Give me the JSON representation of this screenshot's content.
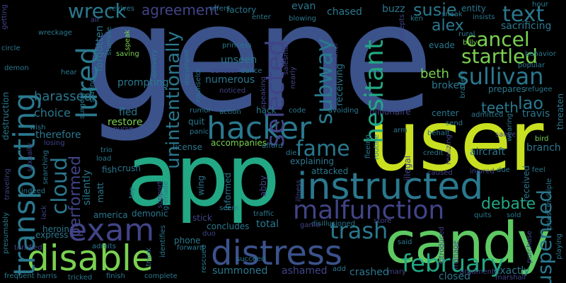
{
  "words": [
    {
      "text": "gene",
      "color": "#3b528b"
    },
    {
      "text": "user",
      "color": "#c8e020"
    },
    {
      "text": "app",
      "color": "#22a884"
    },
    {
      "text": "candy",
      "color": "#5ec962"
    },
    {
      "text": "instructed",
      "color": "#2a788e"
    },
    {
      "text": "distress",
      "color": "#3b528b"
    },
    {
      "text": "disable",
      "color": "#7ad151"
    },
    {
      "text": "malfunction",
      "color": "#414487"
    },
    {
      "text": "hacker",
      "color": "#2a788e"
    },
    {
      "text": "exam",
      "color": "#414487"
    },
    {
      "text": "transporting",
      "color": "#2a788e"
    },
    {
      "text": "lured",
      "color": "#2a788e"
    },
    {
      "text": "selected",
      "color": "#414487"
    },
    {
      "text": "hesitant",
      "color": "#22a884"
    },
    {
      "text": "subway",
      "color": "#2a788e"
    },
    {
      "text": "cancel",
      "color": "#7ad151"
    },
    {
      "text": "startled",
      "color": "#7ad151"
    },
    {
      "text": "sullivan",
      "color": "#2a788e"
    },
    {
      "text": "text",
      "color": "#2a788e"
    },
    {
      "text": "alex",
      "color": "#2a788e"
    },
    {
      "text": "susie",
      "color": "#2a788e"
    },
    {
      "text": "wreck",
      "color": "#2a788e"
    },
    {
      "text": "agreement",
      "color": "#414487"
    },
    {
      "text": "fame",
      "color": "#2a788e"
    },
    {
      "text": "trash",
      "color": "#2a788e"
    },
    {
      "text": "february",
      "color": "#22a884"
    },
    {
      "text": "suspended",
      "color": "#2a788e"
    },
    {
      "text": "cloud",
      "color": "#2a788e"
    },
    {
      "text": "performed",
      "color": "#414487"
    },
    {
      "text": "unintentionally",
      "color": "#2a788e"
    },
    {
      "text": "debate",
      "color": "#22a884"
    },
    {
      "text": "lao",
      "color": "#2a788e"
    },
    {
      "text": "teeth",
      "color": "#2a788e"
    },
    {
      "text": "beth",
      "color": "#7ad151"
    },
    {
      "text": "broken",
      "color": "#2a788e"
    },
    {
      "text": "harassed",
      "color": "#2a788e"
    },
    {
      "text": "choice",
      "color": "#2a788e"
    },
    {
      "text": "therefore",
      "color": "#2a788e"
    },
    {
      "text": "restore",
      "color": "#7ad151"
    },
    {
      "text": "fled",
      "color": "#2a788e"
    },
    {
      "text": "prompting",
      "color": "#2a788e"
    },
    {
      "text": "numerous",
      "color": "#2a788e"
    },
    {
      "text": "unseen",
      "color": "#2a788e"
    },
    {
      "text": "summoned",
      "color": "#2a788e"
    },
    {
      "text": "ashamed",
      "color": "#414487"
    },
    {
      "text": "total",
      "color": "#2a788e"
    },
    {
      "text": "crashed",
      "color": "#2a788e"
    },
    {
      "text": "closed",
      "color": "#2a788e"
    },
    {
      "text": "exactly",
      "color": "#2a788e"
    },
    {
      "text": "aircraft",
      "color": "#2a788e"
    },
    {
      "text": "branch",
      "color": "#2a788e"
    },
    {
      "text": "travis",
      "color": "#2a788e"
    },
    {
      "text": "threaten",
      "color": "#2a788e"
    },
    {
      "text": "sacrificing",
      "color": "#2a788e"
    },
    {
      "text": "evan",
      "color": "#2a788e"
    },
    {
      "text": "chased",
      "color": "#2a788e"
    },
    {
      "text": "buzz",
      "color": "#2a788e"
    },
    {
      "text": "receiving",
      "color": "#2a788e"
    },
    {
      "text": "hack",
      "color": "#2a788e"
    },
    {
      "text": "quit",
      "color": "#2a788e"
    },
    {
      "text": "license",
      "color": "#2a788e"
    },
    {
      "text": "accompanies",
      "color": "#7ad151"
    },
    {
      "text": "explaining",
      "color": "#2a788e"
    },
    {
      "text": "attacked",
      "color": "#2a788e"
    },
    {
      "text": "crush",
      "color": "#2a788e"
    },
    {
      "text": "fish",
      "color": "#2a788e"
    },
    {
      "text": "silently",
      "color": "#2a788e"
    },
    {
      "text": "matt",
      "color": "#2a788e"
    },
    {
      "text": "america",
      "color": "#2a788e"
    },
    {
      "text": "demonic",
      "color": "#2a788e"
    },
    {
      "text": "heroin",
      "color": "#2a788e"
    },
    {
      "text": "express",
      "color": "#2a788e"
    },
    {
      "text": "phone",
      "color": "#2a788e"
    },
    {
      "text": "concludes",
      "color": "#2a788e"
    },
    {
      "text": "informed",
      "color": "#2a788e"
    },
    {
      "text": "abby",
      "color": "#414487"
    },
    {
      "text": "stick",
      "color": "#414487"
    },
    {
      "text": "wing",
      "color": "#2a788e"
    },
    {
      "text": "factory",
      "color": "#2a788e"
    },
    {
      "text": "forgotten",
      "color": "#2a788e"
    },
    {
      "text": "billionaire",
      "color": "#414487"
    },
    {
      "text": "center",
      "color": "#2a788e"
    },
    {
      "text": "evade",
      "color": "#2a788e"
    },
    {
      "text": "prepares",
      "color": "#2a788e"
    },
    {
      "text": "received",
      "color": "#2a788e"
    },
    {
      "text": "illegal",
      "color": "#414487"
    },
    {
      "text": "entity",
      "color": "#2a788e"
    },
    {
      "text": "revives",
      "color": "#2a788e"
    },
    {
      "text": "refers",
      "color": "#2a788e"
    },
    {
      "text": "blowing",
      "color": "#2a788e"
    },
    {
      "text": "ken",
      "color": "#2a788e"
    },
    {
      "text": "sneak",
      "color": "#2a788e"
    },
    {
      "text": "insists",
      "color": "#2a788e"
    },
    {
      "text": "rural",
      "color": "#2a788e"
    },
    {
      "text": "billy",
      "color": "#7ad151"
    },
    {
      "text": "hour",
      "color": "#2a788e"
    },
    {
      "text": "behavior",
      "color": "#2a788e"
    },
    {
      "text": "popular",
      "color": "#2a788e"
    },
    {
      "text": "refugee",
      "color": "#2a788e"
    },
    {
      "text": "admitted",
      "color": "#2a788e"
    },
    {
      "text": "wearing",
      "color": "#2a788e"
    },
    {
      "text": "bird",
      "color": "#7ad151"
    },
    {
      "text": "feel",
      "color": "#2a788e"
    },
    {
      "text": "due",
      "color": "#2a788e"
    },
    {
      "text": "injured",
      "color": "#414487"
    },
    {
      "text": "behalf",
      "color": "#2a788e"
    },
    {
      "text": "send",
      "color": "#2a788e"
    },
    {
      "text": "credit",
      "color": "#2a788e"
    },
    {
      "text": "caused",
      "color": "#414487"
    },
    {
      "text": "sold",
      "color": "#2a788e"
    },
    {
      "text": "quits",
      "color": "#2a788e"
    },
    {
      "text": "priest",
      "color": "#2a788e"
    },
    {
      "text": "multiple",
      "color": "#2a788e"
    },
    {
      "text": "playing",
      "color": "#2a788e"
    },
    {
      "text": "purchase",
      "color": "#414487"
    },
    {
      "text": "marshall",
      "color": "#414487"
    },
    {
      "text": "argument",
      "color": "#414487"
    },
    {
      "text": "said",
      "color": "#2a788e"
    },
    {
      "text": "introduced",
      "color": "#414487"
    },
    {
      "text": "mary",
      "color": "#414487"
    },
    {
      "text": "add",
      "color": "#2a788e"
    },
    {
      "text": "disillusioned",
      "color": "#2a788e"
    },
    {
      "text": "store",
      "color": "#414487"
    },
    {
      "text": "succeed",
      "color": "#2a788e"
    },
    {
      "text": "rescued",
      "color": "#2a788e"
    },
    {
      "text": "duo",
      "color": "#414487"
    },
    {
      "text": "traffic",
      "color": "#2a788e"
    },
    {
      "text": "seem",
      "color": "#2a788e"
    },
    {
      "text": "forward",
      "color": "#2a788e"
    },
    {
      "text": "complete",
      "color": "#2a788e"
    },
    {
      "text": "finish",
      "color": "#2a788e"
    },
    {
      "text": "tricked",
      "color": "#2a788e"
    },
    {
      "text": "harris",
      "color": "#2a788e"
    },
    {
      "text": "frequent",
      "color": "#2a788e"
    },
    {
      "text": "admits",
      "color": "#2a788e"
    },
    {
      "text": "terrified",
      "color": "#414487"
    },
    {
      "text": "presumably",
      "color": "#2a788e"
    },
    {
      "text": "indeed",
      "color": "#2a788e"
    },
    {
      "text": "lack",
      "color": "#414487"
    },
    {
      "text": "traveling",
      "color": "#414487"
    },
    {
      "text": "searching",
      "color": "#2a788e"
    },
    {
      "text": "sexually",
      "color": "#414487"
    },
    {
      "text": "losing",
      "color": "#414487"
    },
    {
      "text": "wish",
      "color": "#2a788e"
    },
    {
      "text": "destruction",
      "color": "#2a788e"
    },
    {
      "text": "circle",
      "color": "#2a788e"
    },
    {
      "text": "demon",
      "color": "#2a788e"
    },
    {
      "text": "getting",
      "color": "#414487"
    },
    {
      "text": "wreckage",
      "color": "#2a788e"
    },
    {
      "text": "hear",
      "color": "#2a788e"
    },
    {
      "text": "stating",
      "color": "#2a788e"
    },
    {
      "text": "saving",
      "color": "#7ad151"
    },
    {
      "text": "speak",
      "color": "#7ad151"
    },
    {
      "text": "delivery",
      "color": "#2a788e"
    },
    {
      "text": "surgery",
      "color": "#2a788e"
    },
    {
      "text": "stumble",
      "color": "#2a788e"
    },
    {
      "text": "air",
      "color": "#414487"
    },
    {
      "text": "princess",
      "color": "#2a788e"
    },
    {
      "text": "dance",
      "color": "#2a788e"
    },
    {
      "text": "senator",
      "color": "#414487"
    },
    {
      "text": "noticed",
      "color": "#414487"
    },
    {
      "text": "document",
      "color": "#2a788e"
    },
    {
      "text": "counselor",
      "color": "#2a788e"
    },
    {
      "text": "rumor",
      "color": "#2a788e"
    },
    {
      "text": "action",
      "color": "#2a788e"
    },
    {
      "text": "panic",
      "color": "#2a788e"
    },
    {
      "text": "nurse",
      "color": "#414487"
    },
    {
      "text": "trio",
      "color": "#2a788e"
    },
    {
      "text": "load",
      "color": "#2a788e"
    },
    {
      "text": "top",
      "color": "#2a788e"
    },
    {
      "text": "identifies",
      "color": "#2a788e"
    },
    {
      "text": "grenade",
      "color": "#2a788e"
    },
    {
      "text": "support",
      "color": "#414487"
    },
    {
      "text": "trunk",
      "color": "#2a788e"
    },
    {
      "text": "speaking",
      "color": "#414487"
    },
    {
      "text": "afford",
      "color": "#2a788e"
    },
    {
      "text": "die",
      "color": "#2a788e"
    },
    {
      "text": "code",
      "color": "#2a788e"
    },
    {
      "text": "avoiding",
      "color": "#2a788e"
    },
    {
      "text": "illness",
      "color": "#414487"
    },
    {
      "text": "nearly",
      "color": "#414487"
    },
    {
      "text": "salesman",
      "color": "#414487"
    },
    {
      "text": "fleeing",
      "color": "#2a788e"
    },
    {
      "text": "routine",
      "color": "#2a788e"
    },
    {
      "text": "arm",
      "color": "#2a788e"
    },
    {
      "text": "realizing",
      "color": "#414487"
    },
    {
      "text": "smaller",
      "color": "#414487"
    },
    {
      "text": "enter",
      "color": "#2a788e"
    },
    {
      "text": "accepts",
      "color": "#414487"
    },
    {
      "text": "bravery",
      "color": "#2a788e"
    },
    {
      "text": "sance",
      "color": "#414487"
    },
    {
      "text": "game",
      "color": "#414487"
    },
    {
      "text": "manage",
      "color": "#414487"
    }
  ]
}
